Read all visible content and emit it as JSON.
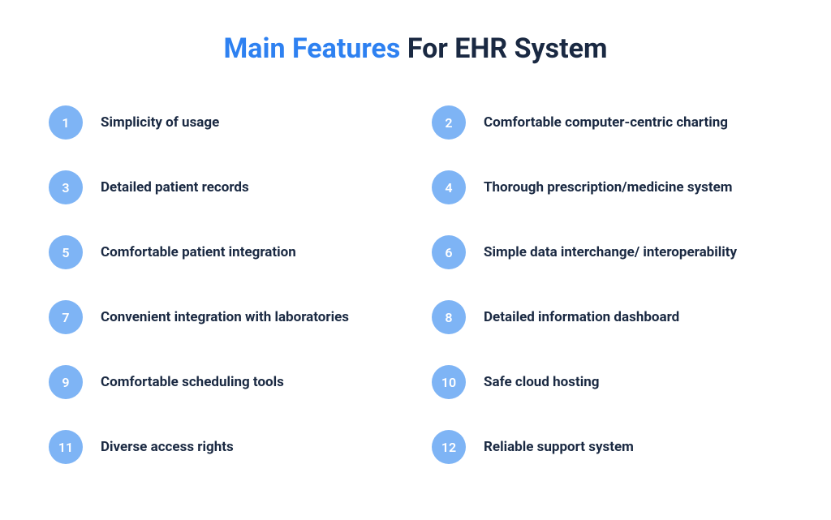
{
  "type": "infographic",
  "title": {
    "highlight": "Main Features",
    "rest": " For EHR System",
    "fontsize": 34,
    "highlight_color": "#2e81f1",
    "rest_color": "#1a2942",
    "font_weight": 700
  },
  "layout": {
    "columns": 2,
    "rows": 6,
    "row_gap": 38,
    "column_gap": 40,
    "background_color": "#ffffff"
  },
  "badge_style": {
    "diameter": 42,
    "background_color": "#7eb4f5",
    "text_color": "#ffffff",
    "font_size": 16,
    "font_weight": 600
  },
  "label_style": {
    "color": "#1a2942",
    "font_size": 17,
    "font_weight": 700
  },
  "features": [
    {
      "number": "1",
      "label": "Simplicity of usage"
    },
    {
      "number": "2",
      "label": "Comfortable computer-centric charting"
    },
    {
      "number": "3",
      "label": "Detailed patient records"
    },
    {
      "number": "4",
      "label": "Thorough prescription/medicine system"
    },
    {
      "number": "5",
      "label": "Comfortable patient integration"
    },
    {
      "number": "6",
      "label": "Simple data interchange/ interoperability"
    },
    {
      "number": "7",
      "label": "Convenient integration with laboratories"
    },
    {
      "number": "8",
      "label": "Detailed information dashboard"
    },
    {
      "number": "9",
      "label": "Comfortable scheduling tools"
    },
    {
      "number": "10",
      "label": "Safe cloud hosting"
    },
    {
      "number": "11",
      "label": "Diverse access rights"
    },
    {
      "number": "12",
      "label": "Reliable support system"
    }
  ]
}
